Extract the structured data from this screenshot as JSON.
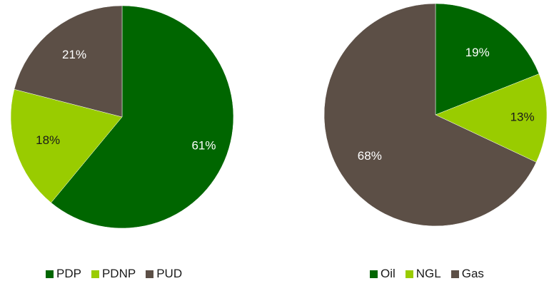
{
  "chart_data": [
    {
      "type": "pie",
      "categories": [
        "PDP",
        "PDNP",
        "PUD"
      ],
      "values": [
        61,
        18,
        21
      ],
      "data_labels": [
        "61%",
        "18%",
        "21%"
      ],
      "colors": [
        "#006600",
        "#99cc00",
        "#5c4f46"
      ],
      "label_colors": [
        "#ffffff",
        "#1a1a1a",
        "#ffffff"
      ],
      "start": "12 o'clock",
      "direction": "clockwise",
      "legend": "bottom"
    },
    {
      "type": "pie",
      "categories": [
        "Oil",
        "NGL",
        "Gas"
      ],
      "values": [
        19,
        13,
        68
      ],
      "data_labels": [
        "19%",
        "13%",
        "68%"
      ],
      "colors": [
        "#006600",
        "#99cc00",
        "#5c4f46"
      ],
      "label_colors": [
        "#ffffff",
        "#1a1a1a",
        "#ffffff"
      ],
      "start": "12 o'clock",
      "direction": "clockwise",
      "legend": "bottom"
    }
  ]
}
